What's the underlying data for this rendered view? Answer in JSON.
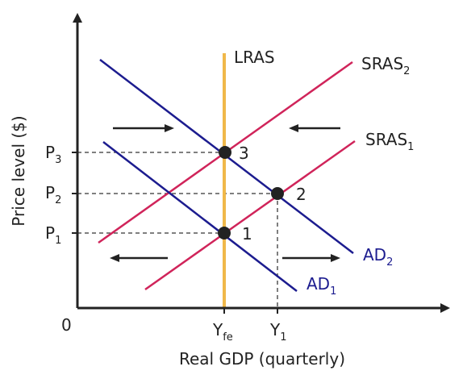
{
  "axes": {
    "y_title": "Price level ($)",
    "x_title": "Real GDP (quarterly)",
    "origin_label": "0"
  },
  "curves": {
    "lras": {
      "label": "LRAS",
      "color": "#F0B84A"
    },
    "sras2": {
      "label": "SRAS",
      "sub": "2",
      "color": "#D0245A"
    },
    "sras1": {
      "label": "SRAS",
      "sub": "1",
      "color": "#D0245A"
    },
    "ad2": {
      "label": "AD",
      "sub": "2",
      "color": "#1C1C8F"
    },
    "ad1": {
      "label": "AD",
      "sub": "1",
      "color": "#1C1C8F"
    }
  },
  "price_levels": {
    "p3": {
      "label": "P",
      "sub": "3"
    },
    "p2": {
      "label": "P",
      "sub": "2"
    },
    "p1": {
      "label": "P",
      "sub": "1"
    }
  },
  "output_levels": {
    "yfe": {
      "label": "Y",
      "sub": "fe"
    },
    "y1": {
      "label": "Y",
      "sub": "1"
    }
  },
  "points": {
    "point1": "1",
    "point2": "2",
    "point3": "3"
  },
  "colors": {
    "axis": "#222222",
    "guide": "#555555",
    "point": "#222222"
  }
}
